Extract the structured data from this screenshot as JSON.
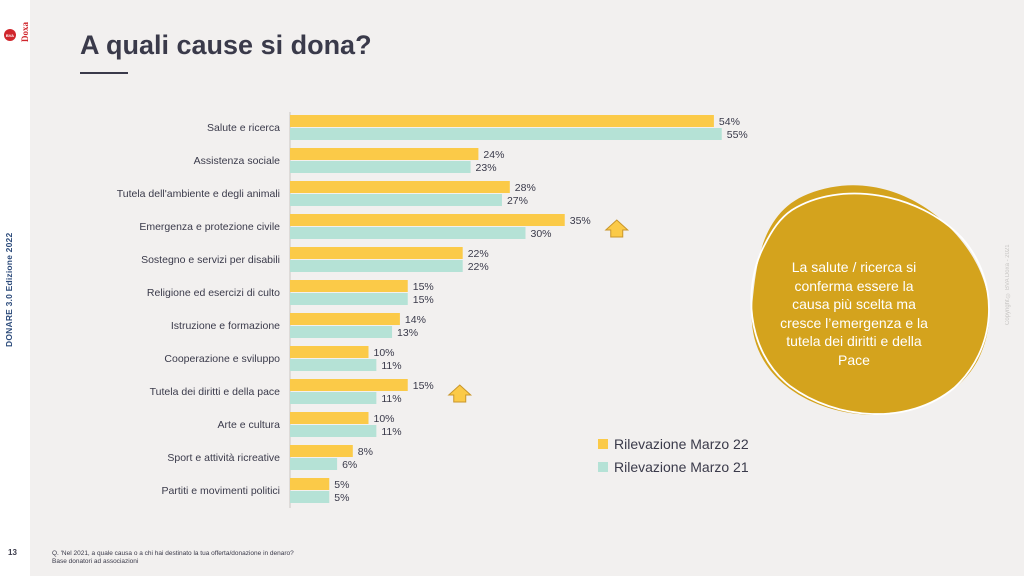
{
  "page": {
    "title": "A quali cause si dona?",
    "side_label": "DONARE 3.0 Edizione 2022",
    "page_number": "13",
    "copyright": "Copyright © BVA Doxa - 2021",
    "logo_text": "BVA Doxa"
  },
  "callout": {
    "text": "La salute / ricerca si conferma essere la causa più scelta ma cresce l’emergenza e la tutela dei diritti e della Pace"
  },
  "footnote": {
    "line1": "Q. 'Nel 2021, a quale causa o a chi hai destinato la tua offerta/donazione in denaro?",
    "line2": "Base donatori ad associazioni"
  },
  "colors": {
    "marzo22": "#fbca48",
    "marzo21": "#b5e2d6",
    "blob": "#d4a31d",
    "arrow": "#fbca48",
    "arrow_stroke": "#c9962a"
  },
  "chart_data": {
    "type": "bar",
    "orientation": "horizontal",
    "value_suffix": "%",
    "xlim": [
      0,
      60
    ],
    "legend_position": "bottom-right",
    "categories": [
      "Salute e ricerca",
      "Assistenza sociale",
      "Tutela dell'ambiente e degli animali",
      "Emergenza e protezione civile",
      "Sostegno e servizi per disabili",
      "Religione ed esercizi di culto",
      "Istruzione e formazione",
      "Cooperazione e sviluppo",
      "Tutela dei diritti e della pace",
      "Arte e cultura",
      "Sport e attività ricreative",
      "Partiti e movimenti politici"
    ],
    "series": [
      {
        "name": "Rilevazione Marzo 22",
        "values": [
          54,
          24,
          28,
          35,
          22,
          15,
          14,
          10,
          15,
          10,
          8,
          5
        ]
      },
      {
        "name": "Rilevazione Marzo 21",
        "values": [
          55,
          23,
          27,
          30,
          22,
          15,
          13,
          11,
          11,
          11,
          6,
          5
        ]
      }
    ],
    "increase_arrows": [
      "Emergenza e protezione civile",
      "Tutela dei diritti e della pace"
    ]
  }
}
